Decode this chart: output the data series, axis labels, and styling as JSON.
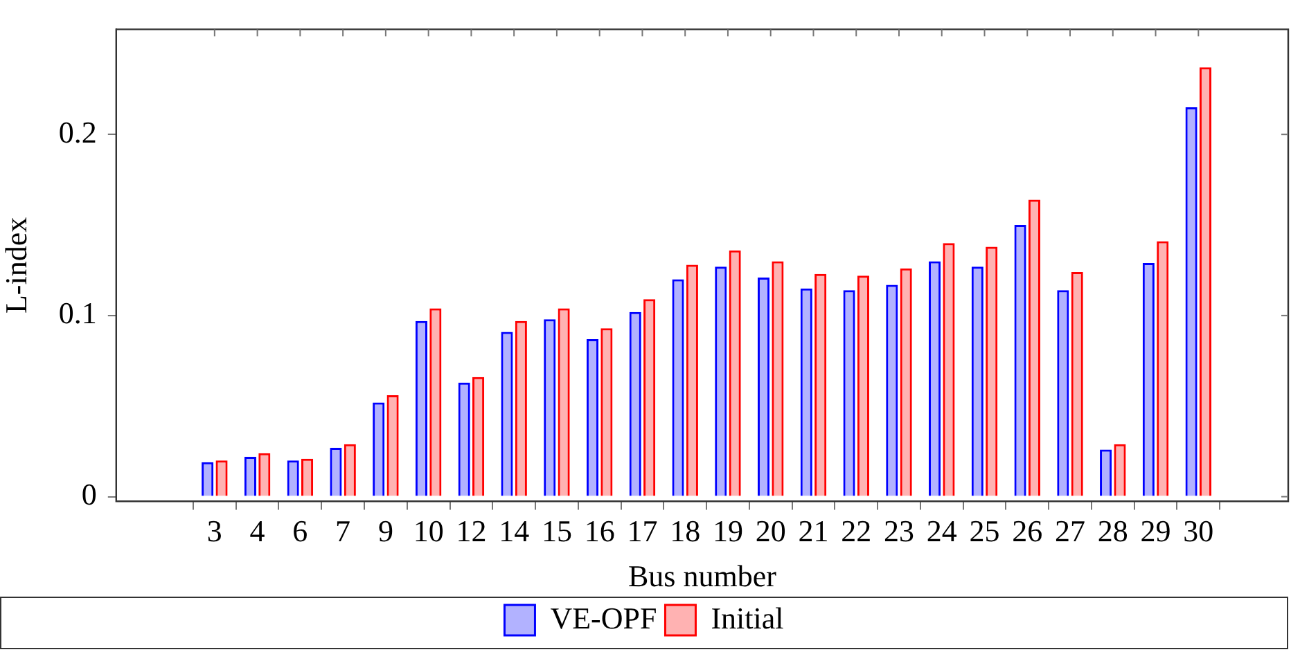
{
  "chart_data": {
    "type": "bar",
    "xlabel": "Bus number",
    "ylabel": "L-index",
    "categories": [
      "3",
      "4",
      "6",
      "7",
      "9",
      "10",
      "12",
      "14",
      "15",
      "16",
      "17",
      "18",
      "19",
      "20",
      "21",
      "22",
      "23",
      "24",
      "25",
      "26",
      "27",
      "28",
      "29",
      "30"
    ],
    "series": [
      {
        "name": "VE-OPF",
        "color": "#0000ff",
        "values": [
          0.019,
          0.022,
          0.02,
          0.027,
          0.052,
          0.097,
          0.063,
          0.091,
          0.098,
          0.087,
          0.102,
          0.12,
          0.127,
          0.121,
          0.115,
          0.114,
          0.117,
          0.13,
          0.127,
          0.15,
          0.114,
          0.026,
          0.129,
          0.215
        ]
      },
      {
        "name": "Initial",
        "color": "#ff0000",
        "values": [
          0.02,
          0.024,
          0.021,
          0.029,
          0.056,
          0.104,
          0.066,
          0.097,
          0.104,
          0.093,
          0.109,
          0.128,
          0.136,
          0.13,
          0.123,
          0.122,
          0.126,
          0.14,
          0.138,
          0.164,
          0.124,
          0.029,
          0.141,
          0.237
        ]
      }
    ],
    "ylim": [
      -0.0026,
      0.258
    ],
    "yticks": [
      0,
      0.1,
      0.2
    ],
    "grid": false,
    "legend": "bottom"
  }
}
